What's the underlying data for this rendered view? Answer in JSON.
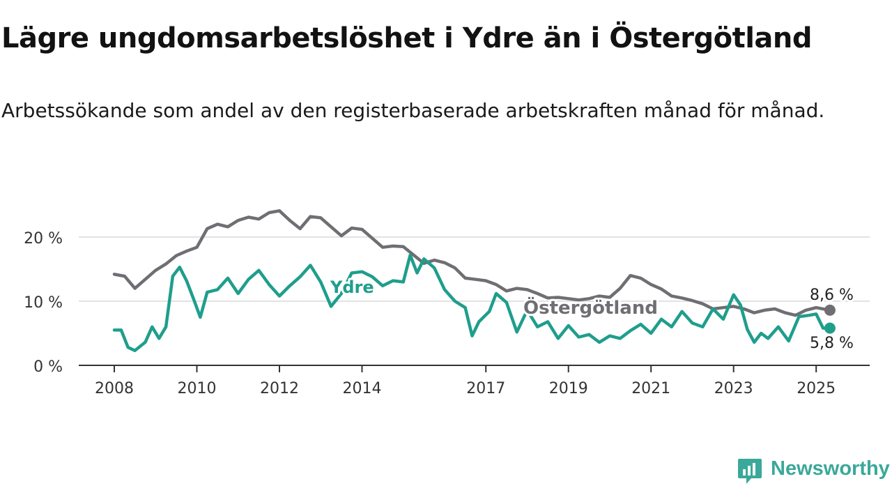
{
  "header": {
    "title": "Lägre ungdomsarbetslöshet i Ydre än i Östergötland",
    "subtitle": "Arbetssökande som andel av den registerbaserade arbetskraften månad för månad."
  },
  "brand": {
    "name": "Newsworthy",
    "icon": "newsworthy-logo-icon",
    "color": "#3aa89a"
  },
  "chart_data": {
    "type": "line",
    "x_ticks": [
      "2008",
      "2010",
      "2012",
      "2014",
      "2017",
      "2019",
      "2021",
      "2023",
      "2025"
    ],
    "y_ticks": [
      "0 %",
      "10 %",
      "20 %"
    ],
    "y_tick_values": [
      0,
      10,
      20
    ],
    "ylim": [
      0,
      25
    ],
    "xlim": [
      "2008-01",
      "2025-05"
    ],
    "grid": "horizontal",
    "series": [
      {
        "name": "Östergötland",
        "color": "#6e6e73",
        "end_label": "8,6 %",
        "points": [
          [
            "2008-01",
            14.2
          ],
          [
            "2008-04",
            13.9
          ],
          [
            "2008-07",
            12.0
          ],
          [
            "2008-10",
            13.4
          ],
          [
            "2009-01",
            14.8
          ],
          [
            "2009-04",
            15.8
          ],
          [
            "2009-07",
            17.1
          ],
          [
            "2009-10",
            17.8
          ],
          [
            "2010-01",
            18.4
          ],
          [
            "2010-04",
            21.3
          ],
          [
            "2010-07",
            22.0
          ],
          [
            "2010-10",
            21.6
          ],
          [
            "2011-01",
            22.6
          ],
          [
            "2011-04",
            23.1
          ],
          [
            "2011-07",
            22.8
          ],
          [
            "2011-10",
            23.8
          ],
          [
            "2012-01",
            24.1
          ],
          [
            "2012-04",
            22.6
          ],
          [
            "2012-07",
            21.3
          ],
          [
            "2012-10",
            23.2
          ],
          [
            "2013-01",
            23.0
          ],
          [
            "2013-04",
            21.6
          ],
          [
            "2013-07",
            20.2
          ],
          [
            "2013-10",
            21.4
          ],
          [
            "2014-01",
            21.2
          ],
          [
            "2014-04",
            19.8
          ],
          [
            "2014-07",
            18.4
          ],
          [
            "2014-10",
            18.6
          ],
          [
            "2015-01",
            18.5
          ],
          [
            "2015-04",
            17.2
          ],
          [
            "2015-07",
            15.9
          ],
          [
            "2015-10",
            16.4
          ],
          [
            "2016-01",
            16.0
          ],
          [
            "2016-04",
            15.2
          ],
          [
            "2016-07",
            13.6
          ],
          [
            "2016-10",
            13.4
          ],
          [
            "2017-01",
            13.2
          ],
          [
            "2017-04",
            12.6
          ],
          [
            "2017-07",
            11.6
          ],
          [
            "2017-10",
            12.0
          ],
          [
            "2018-01",
            11.8
          ],
          [
            "2018-04",
            11.2
          ],
          [
            "2018-07",
            10.5
          ],
          [
            "2018-10",
            10.6
          ],
          [
            "2019-01",
            10.4
          ],
          [
            "2019-04",
            10.2
          ],
          [
            "2019-07",
            10.4
          ],
          [
            "2019-10",
            10.8
          ],
          [
            "2020-01",
            10.6
          ],
          [
            "2020-04",
            12.0
          ],
          [
            "2020-07",
            14.0
          ],
          [
            "2020-10",
            13.6
          ],
          [
            "2021-01",
            12.6
          ],
          [
            "2021-04",
            11.9
          ],
          [
            "2021-07",
            10.8
          ],
          [
            "2021-10",
            10.5
          ],
          [
            "2022-01",
            10.1
          ],
          [
            "2022-04",
            9.6
          ],
          [
            "2022-07",
            8.8
          ],
          [
            "2022-10",
            9.0
          ],
          [
            "2023-01",
            9.2
          ],
          [
            "2023-04",
            8.8
          ],
          [
            "2023-07",
            8.2
          ],
          [
            "2023-10",
            8.6
          ],
          [
            "2024-01",
            8.8
          ],
          [
            "2024-04",
            8.2
          ],
          [
            "2024-07",
            7.8
          ],
          [
            "2024-10",
            8.6
          ],
          [
            "2025-01",
            9.0
          ],
          [
            "2025-05",
            8.6
          ]
        ]
      },
      {
        "name": "Ydre",
        "color": "#1f9e8c",
        "end_label": "5,8 %",
        "points": [
          [
            "2008-01",
            5.5
          ],
          [
            "2008-03",
            5.5
          ],
          [
            "2008-05",
            2.8
          ],
          [
            "2008-07",
            2.3
          ],
          [
            "2008-10",
            3.6
          ],
          [
            "2008-12",
            6.0
          ],
          [
            "2009-02",
            4.2
          ],
          [
            "2009-04",
            6.0
          ],
          [
            "2009-06",
            13.9
          ],
          [
            "2009-08",
            15.3
          ],
          [
            "2009-10",
            13.2
          ],
          [
            "2009-12",
            10.4
          ],
          [
            "2010-02",
            7.5
          ],
          [
            "2010-04",
            11.4
          ],
          [
            "2010-07",
            11.8
          ],
          [
            "2010-10",
            13.6
          ],
          [
            "2011-01",
            11.2
          ],
          [
            "2011-04",
            13.4
          ],
          [
            "2011-07",
            14.8
          ],
          [
            "2011-10",
            12.6
          ],
          [
            "2012-01",
            10.8
          ],
          [
            "2012-04",
            12.4
          ],
          [
            "2012-07",
            13.8
          ],
          [
            "2012-10",
            15.6
          ],
          [
            "2013-01",
            13.0
          ],
          [
            "2013-04",
            9.2
          ],
          [
            "2013-07",
            11.2
          ],
          [
            "2013-10",
            14.4
          ],
          [
            "2014-01",
            14.6
          ],
          [
            "2014-04",
            13.8
          ],
          [
            "2014-07",
            12.4
          ],
          [
            "2014-10",
            13.2
          ],
          [
            "2015-01",
            13.0
          ],
          [
            "2015-03",
            17.2
          ],
          [
            "2015-05",
            14.4
          ],
          [
            "2015-07",
            16.6
          ],
          [
            "2015-10",
            15.2
          ],
          [
            "2016-01",
            11.8
          ],
          [
            "2016-04",
            10.0
          ],
          [
            "2016-07",
            9.0
          ],
          [
            "2016-09",
            4.6
          ],
          [
            "2016-11",
            6.8
          ],
          [
            "2017-02",
            8.4
          ],
          [
            "2017-04",
            11.2
          ],
          [
            "2017-07",
            9.8
          ],
          [
            "2017-10",
            5.2
          ],
          [
            "2018-01",
            8.6
          ],
          [
            "2018-04",
            6.0
          ],
          [
            "2018-07",
            6.8
          ],
          [
            "2018-10",
            4.2
          ],
          [
            "2019-01",
            6.2
          ],
          [
            "2019-04",
            4.4
          ],
          [
            "2019-07",
            4.8
          ],
          [
            "2019-10",
            3.6
          ],
          [
            "2020-01",
            4.6
          ],
          [
            "2020-04",
            4.2
          ],
          [
            "2020-07",
            5.4
          ],
          [
            "2020-10",
            6.4
          ],
          [
            "2021-01",
            5.0
          ],
          [
            "2021-04",
            7.2
          ],
          [
            "2021-07",
            6.0
          ],
          [
            "2021-10",
            8.4
          ],
          [
            "2022-01",
            6.6
          ],
          [
            "2022-04",
            6.0
          ],
          [
            "2022-07",
            8.8
          ],
          [
            "2022-10",
            7.2
          ],
          [
            "2023-01",
            11.0
          ],
          [
            "2023-03",
            9.4
          ],
          [
            "2023-05",
            5.6
          ],
          [
            "2023-07",
            3.6
          ],
          [
            "2023-09",
            5.0
          ],
          [
            "2023-11",
            4.2
          ],
          [
            "2024-02",
            6.0
          ],
          [
            "2024-05",
            3.8
          ],
          [
            "2024-08",
            7.6
          ],
          [
            "2024-11",
            7.8
          ],
          [
            "2025-01",
            8.0
          ],
          [
            "2025-03",
            5.8
          ],
          [
            "2025-05",
            5.8
          ]
        ]
      }
    ]
  }
}
